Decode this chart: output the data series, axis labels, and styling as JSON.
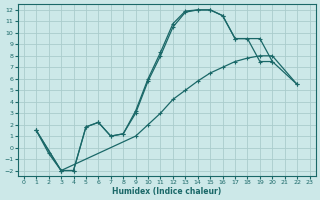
{
  "xlabel": "Humidex (Indice chaleur)",
  "bg_color": "#cce8e8",
  "grid_color": "#aacccc",
  "line_color": "#1a6868",
  "xlim": [
    -0.5,
    23.5
  ],
  "ylim": [
    -2.5,
    12.5
  ],
  "xticks": [
    0,
    1,
    2,
    3,
    4,
    5,
    6,
    7,
    8,
    9,
    10,
    11,
    12,
    13,
    14,
    15,
    16,
    17,
    18,
    19,
    20,
    21,
    22,
    23
  ],
  "yticks": [
    -2,
    -1,
    0,
    1,
    2,
    3,
    4,
    5,
    6,
    7,
    8,
    9,
    10,
    11,
    12
  ],
  "series": [
    {
      "x": [
        1,
        2,
        3,
        4,
        5,
        6,
        7,
        8,
        9,
        10,
        11,
        12,
        13,
        14,
        15,
        16,
        17,
        18,
        19,
        20
      ],
      "y": [
        1.5,
        -0.5,
        -2.0,
        -2.0,
        1.8,
        2.2,
        1.0,
        1.2,
        3.2,
        6.0,
        8.3,
        10.8,
        11.9,
        12.0,
        12.0,
        11.5,
        9.5,
        9.5,
        7.5,
        7.5
      ]
    },
    {
      "x": [
        1,
        3,
        4,
        5,
        6,
        7,
        8,
        9,
        10,
        11,
        12,
        13,
        14,
        15,
        16,
        17,
        19,
        20,
        22
      ],
      "y": [
        1.5,
        -2.0,
        -2.0,
        1.8,
        2.2,
        1.0,
        1.2,
        3.0,
        5.8,
        8.0,
        10.5,
        11.8,
        12.0,
        12.0,
        11.5,
        9.5,
        9.5,
        7.5,
        5.5
      ]
    },
    {
      "x": [
        1,
        3,
        9,
        10,
        11,
        12,
        13,
        14,
        15,
        16,
        17,
        18,
        19,
        20,
        22
      ],
      "y": [
        1.5,
        -2.0,
        1.0,
        2.0,
        3.0,
        4.2,
        5.0,
        5.8,
        6.5,
        7.0,
        7.5,
        7.8,
        8.0,
        8.0,
        5.5
      ]
    }
  ]
}
